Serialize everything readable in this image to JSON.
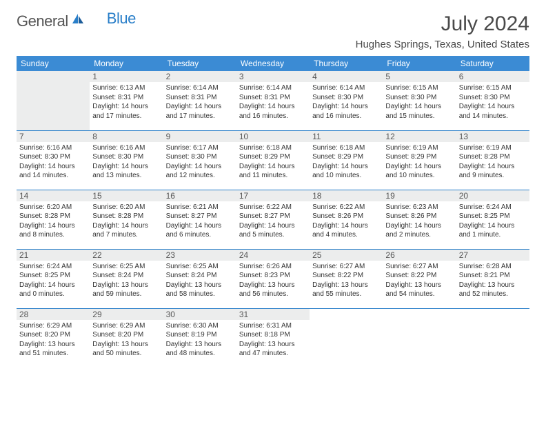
{
  "logo": {
    "text1": "General",
    "text2": "Blue"
  },
  "title": "July 2024",
  "location": "Hughes Springs, Texas, United States",
  "colors": {
    "header_bg": "#3b8bd4",
    "header_text": "#ffffff",
    "row_divider": "#2a7fc9",
    "empty_cell_bg": "#eceded",
    "text": "#333333",
    "title_text": "#4a4a4a"
  },
  "day_headers": [
    "Sunday",
    "Monday",
    "Tuesday",
    "Wednesday",
    "Thursday",
    "Friday",
    "Saturday"
  ],
  "weeks": [
    [
      {
        "num": "",
        "sunrise": "",
        "sunset": "",
        "daylight": ""
      },
      {
        "num": "1",
        "sunrise": "Sunrise: 6:13 AM",
        "sunset": "Sunset: 8:31 PM",
        "daylight": "Daylight: 14 hours and 17 minutes."
      },
      {
        "num": "2",
        "sunrise": "Sunrise: 6:14 AM",
        "sunset": "Sunset: 8:31 PM",
        "daylight": "Daylight: 14 hours and 17 minutes."
      },
      {
        "num": "3",
        "sunrise": "Sunrise: 6:14 AM",
        "sunset": "Sunset: 8:31 PM",
        "daylight": "Daylight: 14 hours and 16 minutes."
      },
      {
        "num": "4",
        "sunrise": "Sunrise: 6:14 AM",
        "sunset": "Sunset: 8:30 PM",
        "daylight": "Daylight: 14 hours and 16 minutes."
      },
      {
        "num": "5",
        "sunrise": "Sunrise: 6:15 AM",
        "sunset": "Sunset: 8:30 PM",
        "daylight": "Daylight: 14 hours and 15 minutes."
      },
      {
        "num": "6",
        "sunrise": "Sunrise: 6:15 AM",
        "sunset": "Sunset: 8:30 PM",
        "daylight": "Daylight: 14 hours and 14 minutes."
      }
    ],
    [
      {
        "num": "7",
        "sunrise": "Sunrise: 6:16 AM",
        "sunset": "Sunset: 8:30 PM",
        "daylight": "Daylight: 14 hours and 14 minutes."
      },
      {
        "num": "8",
        "sunrise": "Sunrise: 6:16 AM",
        "sunset": "Sunset: 8:30 PM",
        "daylight": "Daylight: 14 hours and 13 minutes."
      },
      {
        "num": "9",
        "sunrise": "Sunrise: 6:17 AM",
        "sunset": "Sunset: 8:30 PM",
        "daylight": "Daylight: 14 hours and 12 minutes."
      },
      {
        "num": "10",
        "sunrise": "Sunrise: 6:18 AM",
        "sunset": "Sunset: 8:29 PM",
        "daylight": "Daylight: 14 hours and 11 minutes."
      },
      {
        "num": "11",
        "sunrise": "Sunrise: 6:18 AM",
        "sunset": "Sunset: 8:29 PM",
        "daylight": "Daylight: 14 hours and 10 minutes."
      },
      {
        "num": "12",
        "sunrise": "Sunrise: 6:19 AM",
        "sunset": "Sunset: 8:29 PM",
        "daylight": "Daylight: 14 hours and 10 minutes."
      },
      {
        "num": "13",
        "sunrise": "Sunrise: 6:19 AM",
        "sunset": "Sunset: 8:28 PM",
        "daylight": "Daylight: 14 hours and 9 minutes."
      }
    ],
    [
      {
        "num": "14",
        "sunrise": "Sunrise: 6:20 AM",
        "sunset": "Sunset: 8:28 PM",
        "daylight": "Daylight: 14 hours and 8 minutes."
      },
      {
        "num": "15",
        "sunrise": "Sunrise: 6:20 AM",
        "sunset": "Sunset: 8:28 PM",
        "daylight": "Daylight: 14 hours and 7 minutes."
      },
      {
        "num": "16",
        "sunrise": "Sunrise: 6:21 AM",
        "sunset": "Sunset: 8:27 PM",
        "daylight": "Daylight: 14 hours and 6 minutes."
      },
      {
        "num": "17",
        "sunrise": "Sunrise: 6:22 AM",
        "sunset": "Sunset: 8:27 PM",
        "daylight": "Daylight: 14 hours and 5 minutes."
      },
      {
        "num": "18",
        "sunrise": "Sunrise: 6:22 AM",
        "sunset": "Sunset: 8:26 PM",
        "daylight": "Daylight: 14 hours and 4 minutes."
      },
      {
        "num": "19",
        "sunrise": "Sunrise: 6:23 AM",
        "sunset": "Sunset: 8:26 PM",
        "daylight": "Daylight: 14 hours and 2 minutes."
      },
      {
        "num": "20",
        "sunrise": "Sunrise: 6:24 AM",
        "sunset": "Sunset: 8:25 PM",
        "daylight": "Daylight: 14 hours and 1 minute."
      }
    ],
    [
      {
        "num": "21",
        "sunrise": "Sunrise: 6:24 AM",
        "sunset": "Sunset: 8:25 PM",
        "daylight": "Daylight: 14 hours and 0 minutes."
      },
      {
        "num": "22",
        "sunrise": "Sunrise: 6:25 AM",
        "sunset": "Sunset: 8:24 PM",
        "daylight": "Daylight: 13 hours and 59 minutes."
      },
      {
        "num": "23",
        "sunrise": "Sunrise: 6:25 AM",
        "sunset": "Sunset: 8:24 PM",
        "daylight": "Daylight: 13 hours and 58 minutes."
      },
      {
        "num": "24",
        "sunrise": "Sunrise: 6:26 AM",
        "sunset": "Sunset: 8:23 PM",
        "daylight": "Daylight: 13 hours and 56 minutes."
      },
      {
        "num": "25",
        "sunrise": "Sunrise: 6:27 AM",
        "sunset": "Sunset: 8:22 PM",
        "daylight": "Daylight: 13 hours and 55 minutes."
      },
      {
        "num": "26",
        "sunrise": "Sunrise: 6:27 AM",
        "sunset": "Sunset: 8:22 PM",
        "daylight": "Daylight: 13 hours and 54 minutes."
      },
      {
        "num": "27",
        "sunrise": "Sunrise: 6:28 AM",
        "sunset": "Sunset: 8:21 PM",
        "daylight": "Daylight: 13 hours and 52 minutes."
      }
    ],
    [
      {
        "num": "28",
        "sunrise": "Sunrise: 6:29 AM",
        "sunset": "Sunset: 8:20 PM",
        "daylight": "Daylight: 13 hours and 51 minutes."
      },
      {
        "num": "29",
        "sunrise": "Sunrise: 6:29 AM",
        "sunset": "Sunset: 8:20 PM",
        "daylight": "Daylight: 13 hours and 50 minutes."
      },
      {
        "num": "30",
        "sunrise": "Sunrise: 6:30 AM",
        "sunset": "Sunset: 8:19 PM",
        "daylight": "Daylight: 13 hours and 48 minutes."
      },
      {
        "num": "31",
        "sunrise": "Sunrise: 6:31 AM",
        "sunset": "Sunset: 8:18 PM",
        "daylight": "Daylight: 13 hours and 47 minutes."
      },
      {
        "num": "",
        "sunrise": "",
        "sunset": "",
        "daylight": ""
      },
      {
        "num": "",
        "sunrise": "",
        "sunset": "",
        "daylight": ""
      },
      {
        "num": "",
        "sunrise": "",
        "sunset": "",
        "daylight": ""
      }
    ]
  ]
}
